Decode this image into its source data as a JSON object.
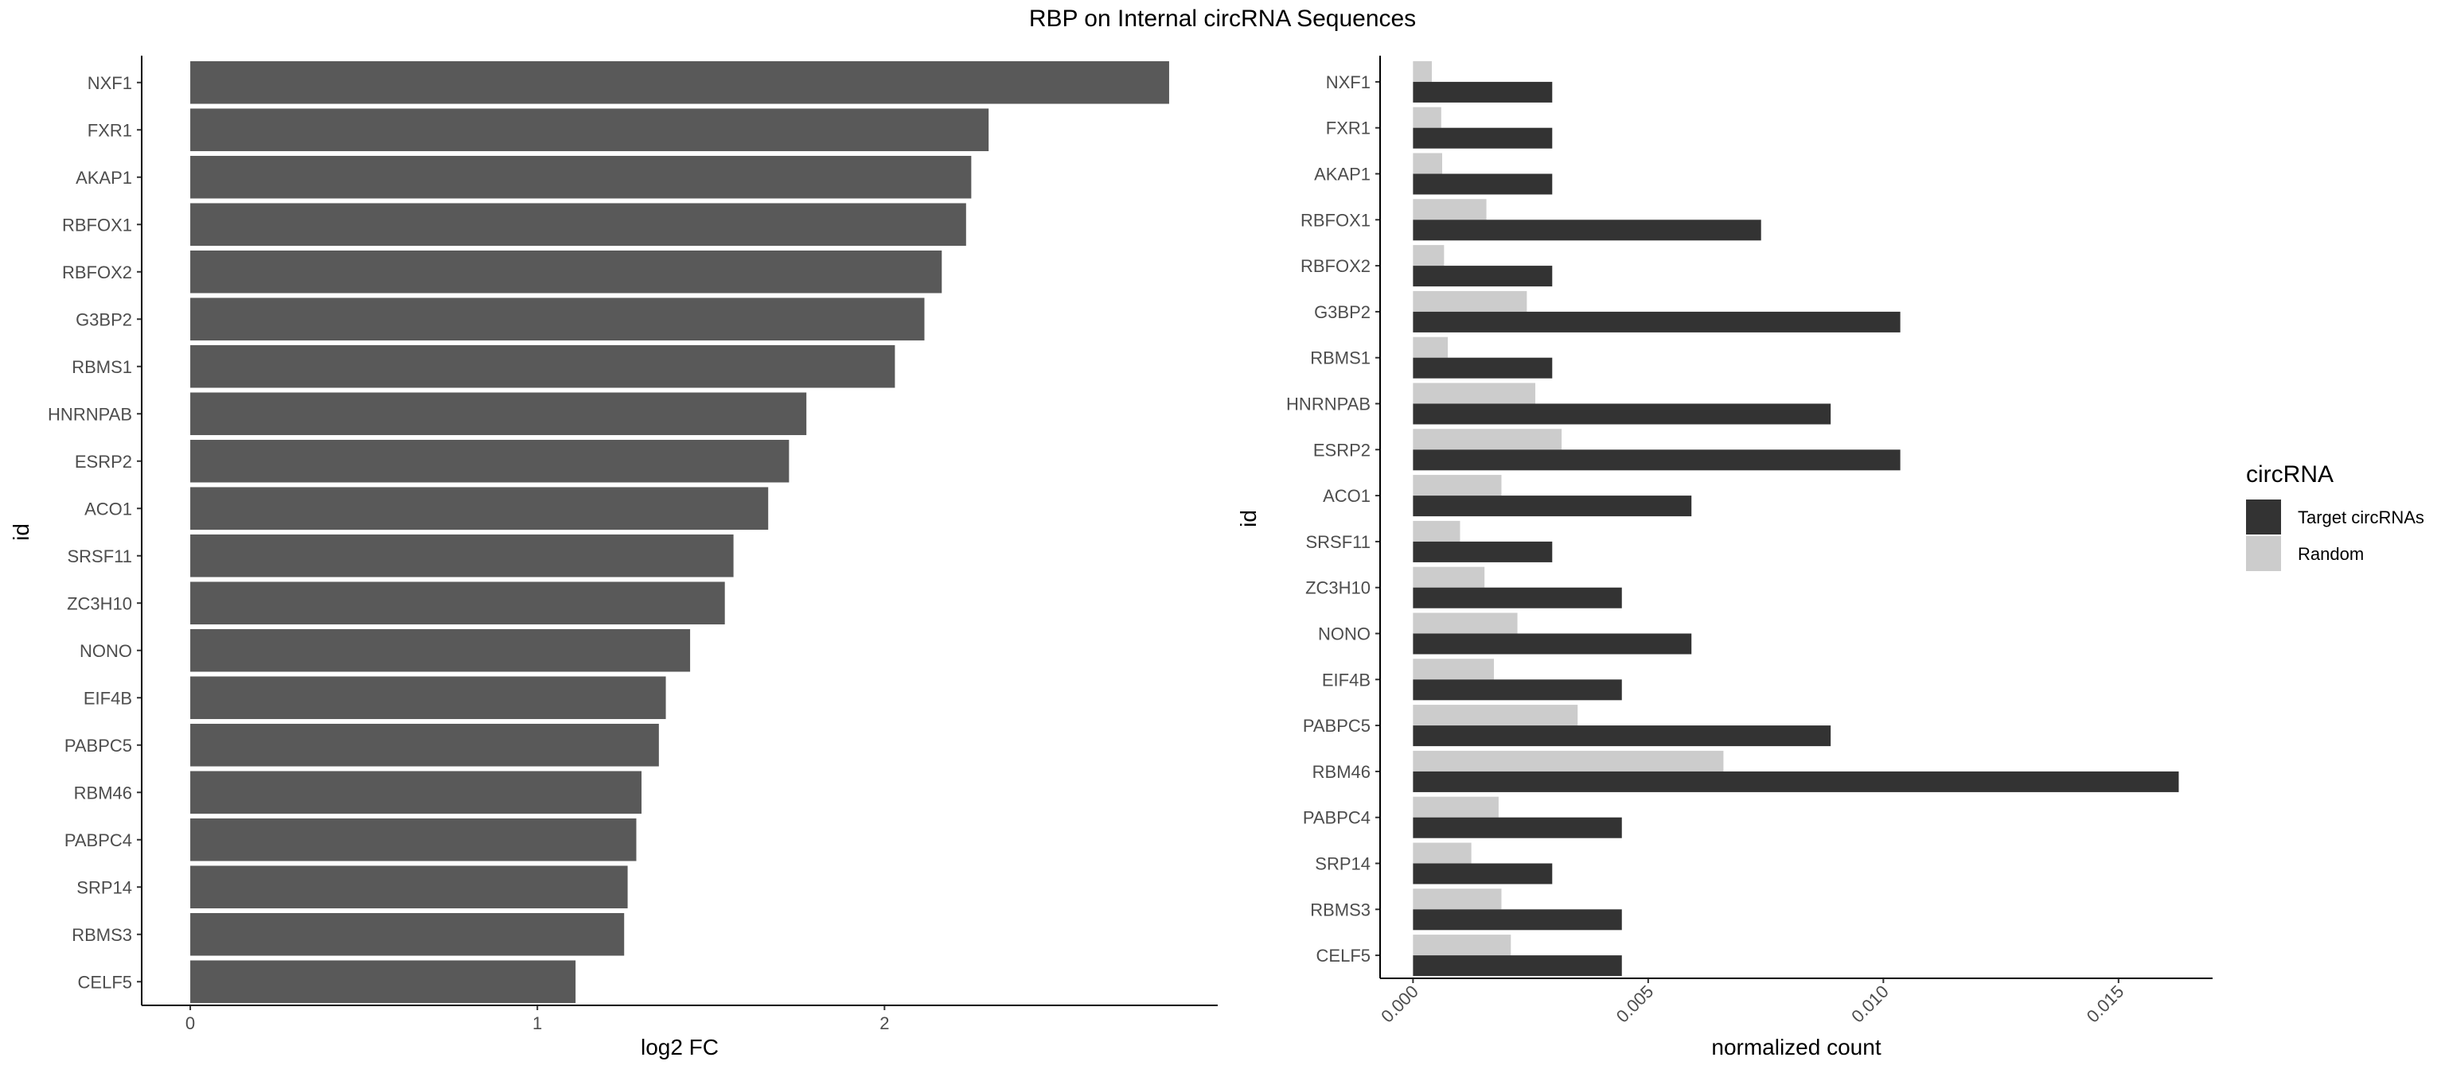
{
  "title": "RBP on Internal circRNA Sequences",
  "chart_data": [
    {
      "type": "bar",
      "orientation": "horizontal",
      "categories": [
        "NXF1",
        "FXR1",
        "AKAP1",
        "RBFOX1",
        "RBFOX2",
        "G3BP2",
        "RBMS1",
        "HNRNPAB",
        "ESRP2",
        "ACO1",
        "SRSF11",
        "ZC3H10",
        "NONO",
        "EIF4B",
        "PABPC5",
        "RBM46",
        "PABPC4",
        "SRP14",
        "RBMS3",
        "CELF5"
      ],
      "values": [
        2.82,
        2.3,
        2.25,
        2.235,
        2.165,
        2.115,
        2.03,
        1.775,
        1.725,
        1.665,
        1.565,
        1.54,
        1.44,
        1.37,
        1.35,
        1.3,
        1.285,
        1.26,
        1.25,
        1.11
      ],
      "xlabel": "log2 FC",
      "ylabel": "id",
      "xlim": [
        -0.14,
        2.96
      ],
      "xticks": [
        "0",
        "1",
        "2"
      ],
      "tick_values": [
        0,
        1,
        2
      ],
      "bar_color": "#595959"
    },
    {
      "type": "bar",
      "orientation": "horizontal",
      "grouped": true,
      "categories": [
        "NXF1",
        "FXR1",
        "AKAP1",
        "RBFOX1",
        "RBFOX2",
        "G3BP2",
        "RBMS1",
        "HNRNPAB",
        "ESRP2",
        "ACO1",
        "SRSF11",
        "ZC3H10",
        "NONO",
        "EIF4B",
        "PABPC5",
        "RBM46",
        "PABPC4",
        "SRP14",
        "RBMS3",
        "CELF5"
      ],
      "series": [
        {
          "name": "Target circRNAs",
          "color": "#333333",
          "values": [
            0.00296,
            0.00296,
            0.00296,
            0.0074,
            0.00296,
            0.01036,
            0.00296,
            0.00888,
            0.01036,
            0.00592,
            0.00296,
            0.00444,
            0.00592,
            0.00444,
            0.00888,
            0.01628,
            0.00444,
            0.00296,
            0.00444,
            0.00444
          ]
        },
        {
          "name": "Random",
          "color": "#cccccc",
          "values": [
            0.0004,
            0.0006,
            0.00062,
            0.00156,
            0.00066,
            0.00242,
            0.00074,
            0.0026,
            0.00316,
            0.00188,
            0.001,
            0.00152,
            0.00222,
            0.00172,
            0.0035,
            0.0066,
            0.00182,
            0.00124,
            0.00188,
            0.00208
          ]
        }
      ],
      "xlabel": "normalized count",
      "ylabel": "id",
      "xlim": [
        -0.0007,
        0.017
      ],
      "xticks": [
        "0.000",
        "0.005",
        "0.010",
        "0.015"
      ],
      "tick_values": [
        0,
        0.005,
        0.01,
        0.015
      ],
      "legend": {
        "title": "circRNA",
        "position": "right"
      }
    }
  ]
}
